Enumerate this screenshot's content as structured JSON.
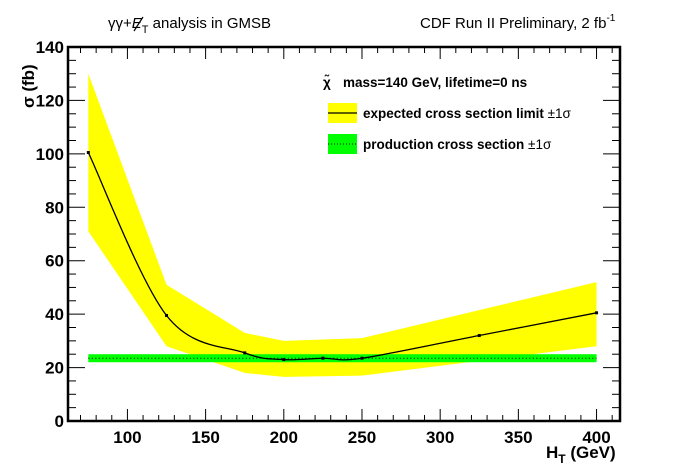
{
  "chart_data": {
    "type": "line",
    "title_left": {
      "main": "γγ+",
      "met": "E",
      "met_sub": "T",
      "rest": " analysis in GMSB"
    },
    "title_right": {
      "main": "CDF Run II Preliminary, 2 fb",
      "sup": "-1"
    },
    "xlabel": {
      "main": "H",
      "sub": "T",
      "rest": " (GeV)"
    },
    "ylabel": "σ (fb)",
    "xlim": [
      62,
      415
    ],
    "ylim": [
      0,
      140
    ],
    "x_ticks": [
      100,
      150,
      200,
      250,
      300,
      350,
      400
    ],
    "x_tick_labels": [
      "100",
      "150",
      "200",
      "250",
      "300",
      "350",
      "400"
    ],
    "y_ticks": [
      0,
      20,
      40,
      60,
      80,
      100,
      120,
      140
    ],
    "y_tick_labels": [
      "0",
      "20",
      "40",
      "60",
      "80",
      "100",
      "120",
      "140"
    ],
    "legend": {
      "header_symbol": "χ̃",
      "header": "mass=140 GeV, lifetime=0 ns",
      "entries": [
        {
          "label": "expected cross section limit ",
          "pm": "±1σ"
        },
        {
          "label": "production cross section ",
          "pm": "±1σ"
        }
      ],
      "placement": "top-right"
    },
    "series": [
      {
        "name": "expected cross section limit",
        "x": [
          75,
          125,
          175,
          200,
          225,
          250,
          325,
          400
        ],
        "y": [
          100.5,
          39.5,
          25.5,
          23,
          23.5,
          23.5,
          32,
          40.5
        ],
        "band_x": [
          75,
          125,
          175,
          200,
          250,
          400
        ],
        "band_upper": [
          130,
          51,
          33,
          30,
          31,
          52
        ],
        "band_lower": [
          71,
          28,
          18,
          16.5,
          17,
          28
        ],
        "line_color": "#000000",
        "band_color": "#ffff00"
      },
      {
        "name": "production cross section",
        "x": [
          75,
          400
        ],
        "y": [
          23.5,
          23.5
        ],
        "band_upper": [
          25,
          25
        ],
        "band_lower": [
          22,
          22
        ],
        "line_color": "#000000",
        "band_color": "#00ff00"
      }
    ]
  }
}
